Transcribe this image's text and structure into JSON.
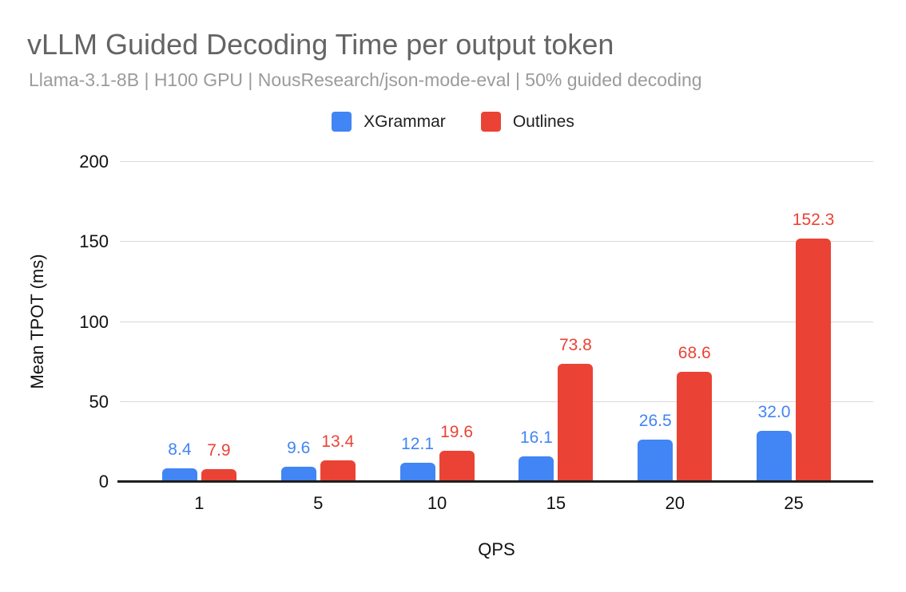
{
  "chart": {
    "title": "vLLM Guided Decoding Time per output token",
    "subtitle": "Llama-3.1-8B | H100 GPU | NousResearch/json-mode-eval | 50% guided decoding"
  },
  "chart_data": {
    "type": "bar",
    "title": "vLLM Guided Decoding Time per output token",
    "subtitle": "Llama-3.1-8B | H100 GPU | NousResearch/json-mode-eval | 50% guided decoding",
    "categories": [
      "1",
      "5",
      "10",
      "15",
      "20",
      "25"
    ],
    "series": [
      {
        "name": "XGrammar",
        "color": "#4285f4",
        "values": [
          8.4,
          9.6,
          12.1,
          16.1,
          26.5,
          32.0
        ]
      },
      {
        "name": "Outlines",
        "color": "#ea4335",
        "values": [
          7.9,
          13.4,
          19.6,
          73.8,
          68.6,
          152.3
        ]
      }
    ],
    "xlabel": "QPS",
    "ylabel": "Mean TPOT (ms)",
    "ylim": [
      0,
      200
    ],
    "yticks": [
      0,
      50,
      100,
      150,
      200
    ],
    "grid": true,
    "legend_position": "top",
    "data_labels": true,
    "label_decimals": 1
  },
  "colors": {
    "background": "#ffffff",
    "title_text": "#646464",
    "subtitle_text": "#9b9b9b",
    "axis_text": "#111111",
    "gridline": "#d9d9d9",
    "axis_line": "#1f1f1f",
    "series_xgrammar": "#4285f4",
    "series_outlines": "#ea4335"
  }
}
